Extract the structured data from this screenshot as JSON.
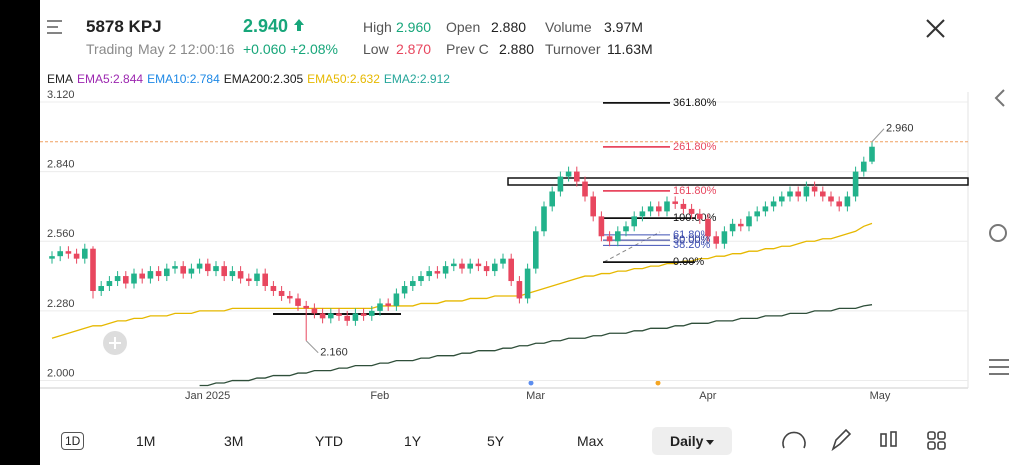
{
  "header": {
    "symbol": "5878 KPJ",
    "price": "2.940",
    "status": "Trading",
    "time": "May 2 12:00:16",
    "change": "+0.060",
    "change_pct": "+2.08%",
    "stats": [
      {
        "label": "High",
        "value": "2.960"
      },
      {
        "label": "Low",
        "value": "2.870"
      },
      {
        "label": "Open",
        "value": "2.880"
      },
      {
        "label": "Prev C",
        "value": "2.880"
      },
      {
        "label": "Volume",
        "value": "3.97M"
      },
      {
        "label": "Turnover",
        "value": "11.63M"
      }
    ]
  },
  "ema_legend": {
    "title": "EMA",
    "items": [
      {
        "text": "EMA5:2.844",
        "color": "#9c27b0"
      },
      {
        "text": "EMA10:2.784",
        "color": "#1e88e5"
      },
      {
        "text": "EMA200:2.305",
        "color": "#1b1b1b"
      },
      {
        "text": "EMA50:2.632",
        "color": "#e6b800"
      },
      {
        "text": "EMA2:2.912",
        "color": "#26a69a"
      }
    ]
  },
  "chart_data": {
    "type": "candlestick",
    "up_color": "#22b28b",
    "down_color": "#e8475f",
    "ylim": [
      1.97,
      3.16
    ],
    "yticks": [
      {
        "value": 3.12,
        "label": "3.120"
      },
      {
        "value": 2.84,
        "label": "2.840"
      },
      {
        "value": 2.56,
        "label": "2.560"
      },
      {
        "value": 2.28,
        "label": "2.280"
      },
      {
        "value": 2.0,
        "label": "2.000"
      }
    ],
    "categories": [
      null,
      null,
      null,
      null,
      null,
      null,
      null,
      null,
      null,
      null,
      null,
      null,
      null,
      null,
      null,
      null,
      null,
      null,
      "Jan 2025",
      null,
      null,
      null,
      null,
      null,
      null,
      null,
      null,
      null,
      null,
      null,
      null,
      null,
      null,
      null,
      null,
      null,
      null,
      null,
      null,
      "Feb",
      null,
      null,
      null,
      null,
      null,
      null,
      null,
      null,
      null,
      null,
      null,
      null,
      null,
      null,
      null,
      null,
      null,
      null,
      "Mar",
      null,
      null,
      null,
      null,
      null,
      null,
      null,
      null,
      null,
      null,
      null,
      null,
      null,
      null,
      null,
      null,
      null,
      null,
      null,
      null,
      "Apr",
      null,
      null,
      null,
      null,
      null,
      null,
      null,
      null,
      null,
      null,
      null,
      null,
      null,
      null,
      null,
      null,
      null,
      null,
      null,
      null,
      "May"
    ],
    "open": [
      2.49,
      2.5,
      2.52,
      2.51,
      2.49,
      2.53,
      2.36,
      2.38,
      2.4,
      2.42,
      2.39,
      2.43,
      2.41,
      2.44,
      2.42,
      2.45,
      2.46,
      2.43,
      2.45,
      2.47,
      2.44,
      2.46,
      2.42,
      2.44,
      2.41,
      2.4,
      2.43,
      2.38,
      2.36,
      2.34,
      2.33,
      2.3,
      2.29,
      2.27,
      2.25,
      2.27,
      2.26,
      2.24,
      2.27,
      2.26,
      2.28,
      2.31,
      2.3,
      2.35,
      2.38,
      2.4,
      2.42,
      2.44,
      2.43,
      2.46,
      2.47,
      2.45,
      2.47,
      2.46,
      2.44,
      2.47,
      2.49,
      2.4,
      2.33,
      2.45,
      2.6,
      2.7,
      2.76,
      2.82,
      2.84,
      2.8,
      2.74,
      2.66,
      2.58,
      2.56,
      2.6,
      2.62,
      2.66,
      2.68,
      2.7,
      2.68,
      2.72,
      2.71,
      2.69,
      2.67,
      2.65,
      2.58,
      2.55,
      2.6,
      2.63,
      2.62,
      2.66,
      2.68,
      2.7,
      2.72,
      2.74,
      2.76,
      2.74,
      2.78,
      2.76,
      2.74,
      2.72,
      2.7,
      2.74,
      2.84,
      2.88
    ],
    "high": [
      2.52,
      2.54,
      2.54,
      2.53,
      2.55,
      2.54,
      2.4,
      2.42,
      2.44,
      2.44,
      2.45,
      2.45,
      2.46,
      2.46,
      2.47,
      2.48,
      2.48,
      2.47,
      2.49,
      2.49,
      2.48,
      2.48,
      2.46,
      2.46,
      2.43,
      2.45,
      2.45,
      2.4,
      2.38,
      2.36,
      2.35,
      2.32,
      2.31,
      2.29,
      2.29,
      2.29,
      2.28,
      2.29,
      2.29,
      2.3,
      2.33,
      2.33,
      2.37,
      2.4,
      2.42,
      2.44,
      2.46,
      2.46,
      2.48,
      2.49,
      2.49,
      2.49,
      2.49,
      2.48,
      2.49,
      2.51,
      2.51,
      2.42,
      2.47,
      2.62,
      2.72,
      2.78,
      2.84,
      2.86,
      2.86,
      2.82,
      2.76,
      2.68,
      2.6,
      2.62,
      2.64,
      2.68,
      2.7,
      2.72,
      2.72,
      2.74,
      2.74,
      2.73,
      2.71,
      2.69,
      2.67,
      2.6,
      2.62,
      2.65,
      2.65,
      2.68,
      2.7,
      2.72,
      2.74,
      2.76,
      2.78,
      2.78,
      2.8,
      2.8,
      2.78,
      2.76,
      2.74,
      2.76,
      2.86,
      2.9,
      2.96
    ],
    "low": [
      2.47,
      2.48,
      2.49,
      2.47,
      2.47,
      2.33,
      2.34,
      2.36,
      2.38,
      2.37,
      2.37,
      2.39,
      2.39,
      2.4,
      2.4,
      2.43,
      2.41,
      2.41,
      2.43,
      2.42,
      2.42,
      2.4,
      2.4,
      2.39,
      2.38,
      2.38,
      2.36,
      2.34,
      2.32,
      2.31,
      2.28,
      2.16,
      2.25,
      2.23,
      2.23,
      2.24,
      2.22,
      2.22,
      2.24,
      2.24,
      2.26,
      2.28,
      2.28,
      2.33,
      2.36,
      2.38,
      2.4,
      2.41,
      2.41,
      2.44,
      2.43,
      2.43,
      2.44,
      2.42,
      2.42,
      2.45,
      2.38,
      2.31,
      2.31,
      2.43,
      2.58,
      2.68,
      2.74,
      2.8,
      2.78,
      2.72,
      2.64,
      2.56,
      2.54,
      2.54,
      2.58,
      2.6,
      2.64,
      2.66,
      2.66,
      2.66,
      2.69,
      2.67,
      2.65,
      2.63,
      2.56,
      2.53,
      2.53,
      2.58,
      2.6,
      2.6,
      2.64,
      2.66,
      2.68,
      2.7,
      2.72,
      2.72,
      2.72,
      2.74,
      2.72,
      2.7,
      2.68,
      2.68,
      2.72,
      2.82,
      2.87
    ],
    "close": [
      2.5,
      2.52,
      2.51,
      2.49,
      2.53,
      2.36,
      2.38,
      2.4,
      2.42,
      2.39,
      2.43,
      2.41,
      2.44,
      2.42,
      2.45,
      2.46,
      2.43,
      2.45,
      2.47,
      2.44,
      2.46,
      2.42,
      2.44,
      2.41,
      2.4,
      2.43,
      2.38,
      2.36,
      2.34,
      2.33,
      2.3,
      2.29,
      2.27,
      2.25,
      2.27,
      2.26,
      2.24,
      2.27,
      2.26,
      2.28,
      2.31,
      2.3,
      2.35,
      2.38,
      2.4,
      2.42,
      2.44,
      2.43,
      2.46,
      2.47,
      2.45,
      2.47,
      2.46,
      2.44,
      2.47,
      2.49,
      2.4,
      2.33,
      2.45,
      2.6,
      2.7,
      2.76,
      2.82,
      2.84,
      2.8,
      2.74,
      2.66,
      2.58,
      2.56,
      2.6,
      2.62,
      2.66,
      2.68,
      2.7,
      2.68,
      2.72,
      2.71,
      2.69,
      2.67,
      2.65,
      2.58,
      2.55,
      2.6,
      2.63,
      2.62,
      2.66,
      2.68,
      2.7,
      2.72,
      2.74,
      2.76,
      2.74,
      2.78,
      2.76,
      2.74,
      2.72,
      2.7,
      2.74,
      2.84,
      2.88,
      2.94
    ],
    "overlays": [
      {
        "color": "#e6b800",
        "values": [
          2.17,
          2.18,
          2.19,
          2.2,
          2.21,
          2.22,
          2.22,
          2.23,
          2.24,
          2.24,
          2.25,
          2.25,
          2.26,
          2.26,
          2.26,
          2.27,
          2.27,
          2.27,
          2.28,
          2.28,
          2.28,
          2.28,
          2.29,
          2.29,
          2.29,
          2.29,
          2.29,
          2.29,
          2.29,
          2.29,
          2.29,
          2.29,
          2.29,
          2.29,
          2.29,
          2.29,
          2.29,
          2.29,
          2.29,
          2.29,
          2.3,
          2.3,
          2.3,
          2.3,
          2.3,
          2.31,
          2.31,
          2.31,
          2.32,
          2.32,
          2.32,
          2.33,
          2.33,
          2.33,
          2.34,
          2.34,
          2.34,
          2.34,
          2.35,
          2.36,
          2.37,
          2.38,
          2.39,
          2.4,
          2.41,
          2.42,
          2.42,
          2.43,
          2.43,
          2.44,
          2.44,
          2.45,
          2.45,
          2.46,
          2.46,
          2.47,
          2.47,
          2.48,
          2.48,
          2.49,
          2.49,
          2.5,
          2.5,
          2.51,
          2.51,
          2.52,
          2.52,
          2.53,
          2.53,
          2.54,
          2.54,
          2.55,
          2.56,
          2.56,
          2.57,
          2.57,
          2.58,
          2.59,
          2.6,
          2.62,
          2.632
        ]
      },
      {
        "color": "#2f4f3a",
        "values": [
          null,
          null,
          null,
          null,
          null,
          null,
          null,
          null,
          null,
          null,
          null,
          null,
          null,
          null,
          null,
          null,
          null,
          null,
          1.98,
          1.98,
          1.99,
          1.99,
          2.0,
          2.0,
          2.0,
          2.01,
          2.01,
          2.02,
          2.02,
          2.02,
          2.03,
          2.03,
          2.04,
          2.04,
          2.04,
          2.05,
          2.05,
          2.06,
          2.06,
          2.06,
          2.07,
          2.07,
          2.08,
          2.08,
          2.08,
          2.09,
          2.09,
          2.1,
          2.1,
          2.1,
          2.11,
          2.11,
          2.12,
          2.12,
          2.12,
          2.13,
          2.13,
          2.14,
          2.14,
          2.15,
          2.15,
          2.16,
          2.16,
          2.17,
          2.17,
          2.17,
          2.18,
          2.18,
          2.19,
          2.19,
          2.19,
          2.2,
          2.2,
          2.21,
          2.21,
          2.21,
          2.22,
          2.22,
          2.23,
          2.23,
          2.23,
          2.24,
          2.24,
          2.24,
          2.25,
          2.25,
          2.25,
          2.26,
          2.26,
          2.26,
          2.27,
          2.27,
          2.27,
          2.28,
          2.28,
          2.28,
          2.29,
          2.29,
          2.29,
          2.3,
          2.305
        ]
      }
    ],
    "annotations": [
      {
        "label": "2.960",
        "value": 2.96
      },
      {
        "label": "2.160",
        "value": 2.16
      }
    ],
    "fibonacci": {
      "start": 2.476,
      "end": 2.653,
      "levels": [
        {
          "value": 361.8,
          "label": "361.80%",
          "color": "#111111"
        },
        {
          "value": 261.8,
          "label": "261.80%",
          "color": "#e8475f"
        },
        {
          "value": 161.8,
          "label": "161.80%",
          "color": "#e8475f"
        },
        {
          "value": 100,
          "label": "100.00%",
          "color": "#111111"
        },
        {
          "value": 61.8,
          "label": "61.80%",
          "color": "#3f51b5"
        },
        {
          "value": 50,
          "label": "50.00%",
          "color": "#283593"
        },
        {
          "value": 38.2,
          "label": "38.20%",
          "color": "#3f51b5"
        },
        {
          "value": 0,
          "label": "0.00%",
          "color": "#111111"
        }
      ]
    }
  },
  "toolbar": {
    "periods": [
      "1D",
      "1M",
      "3M",
      "YTD",
      "1Y",
      "5Y",
      "Max"
    ],
    "interval": "Daily"
  }
}
